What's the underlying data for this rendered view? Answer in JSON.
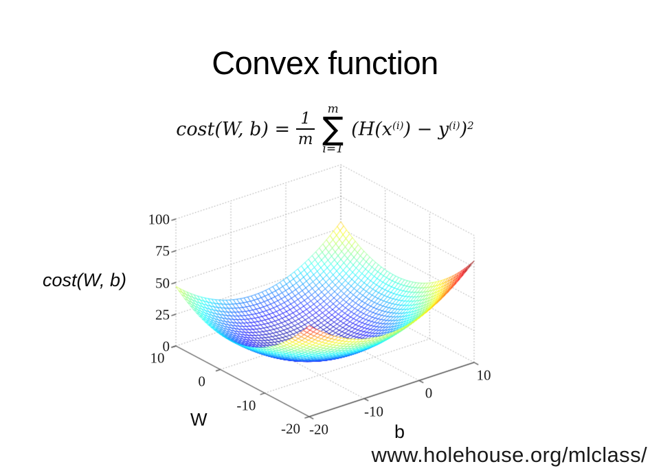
{
  "slide": {
    "title": "Convex function",
    "source_url": "www.holehouse.org/mlclass/"
  },
  "formula": {
    "lhs": "cost(W, b) =",
    "frac_num": "1",
    "frac_den": "m",
    "sum_upper": "m",
    "sum_sigma": "∑",
    "sum_lower": "i=1",
    "term_a": "(H(x",
    "sup_i1": "(i)",
    "term_b": ") − y",
    "sup_i2": "(i)",
    "term_c": ")",
    "sup_sq": "2"
  },
  "chart_data": {
    "type": "surface",
    "title": "",
    "description": "3D wireframe mesh of a convex bowl-shaped cost surface, MATLAB-style view (az -37.5, el 30), jet colormap from dark blue (low) to red (high), dotted grid walls and floor",
    "axes": {
      "z": {
        "label": "cost(W, b)",
        "ticks": [
          0,
          25,
          50,
          75,
          100
        ],
        "range": [
          0,
          100
        ]
      },
      "W": {
        "label": "W",
        "ticks": [
          10,
          0,
          -10,
          -20
        ],
        "range": [
          -20,
          10
        ]
      },
      "b": {
        "label": "b",
        "ticks": [
          -20,
          -10,
          0,
          10
        ],
        "range": [
          -20,
          10
        ]
      }
    },
    "surface": {
      "formula": "cost = k*((W-W0)^2 + (b-b0)^2)",
      "k": 0.1378,
      "W0": -2,
      "b0": -6,
      "grid_divisions": 46,
      "colormap": "jet",
      "color_scale_max": 78,
      "corner_heights": {
        "front_W-20_b-20": 72,
        "left_W10_b-20": 47,
        "right_W-20_b10": 80,
        "back_W10_b10": 55
      }
    },
    "colors": {
      "grid_dotted": "#999999",
      "axis_line": "#555555",
      "tick_text": "#1c1c1c"
    },
    "legend": null,
    "grid": true
  }
}
